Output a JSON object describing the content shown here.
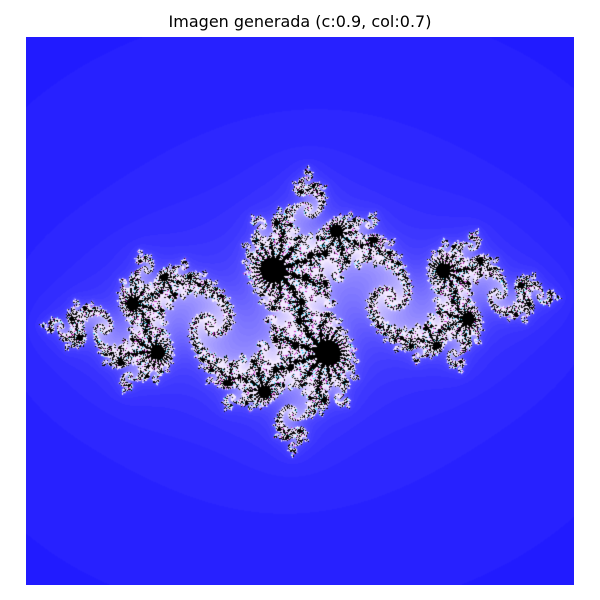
{
  "figure": {
    "title": "Imagen generada (c:0.9, col:0.7)"
  },
  "image": {
    "subject": "julia-set-fractal",
    "colors": {
      "background": "#1a14ff",
      "glow": "#f2e8ff",
      "fractal_core": "#000000",
      "accent_cyan": "#4fe0ff",
      "accent_magenta": "#c832c8"
    }
  }
}
